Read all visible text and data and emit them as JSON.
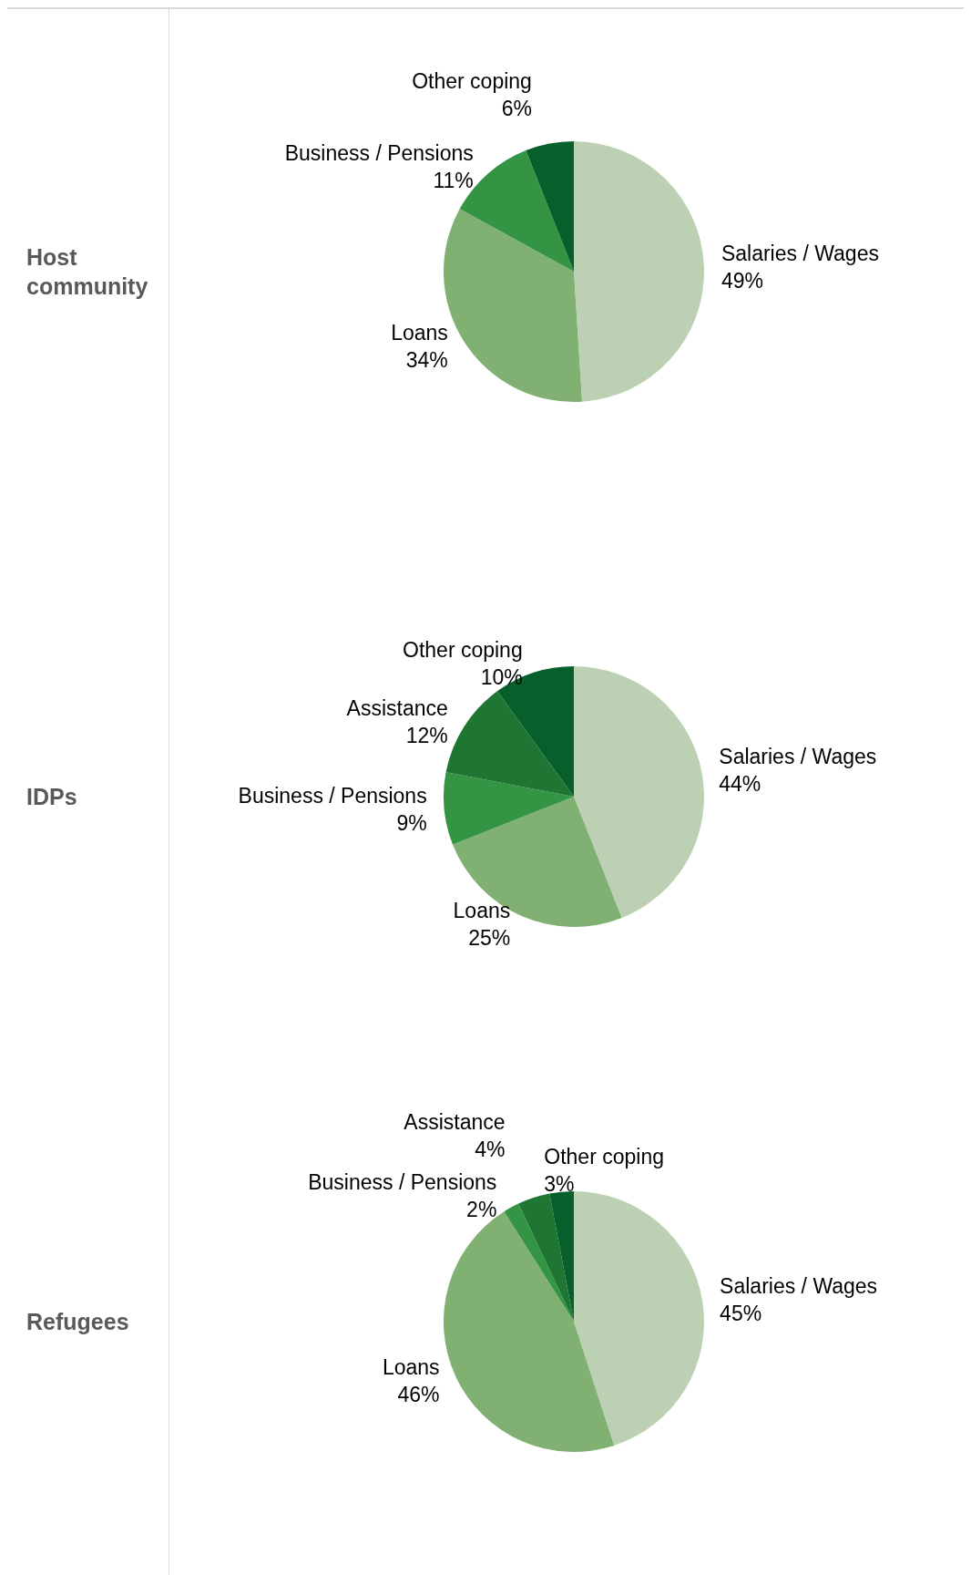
{
  "chart_data": [
    {
      "type": "pie",
      "title": "Host community",
      "categories": [
        "Salaries / Wages",
        "Loans",
        "Business / Pensions",
        "Other coping"
      ],
      "values": [
        49,
        34,
        11,
        6
      ],
      "value_labels": [
        "49%",
        "34%",
        "11%",
        "6%"
      ],
      "colors": [
        "#bcd1b4",
        "#80b072",
        "#339444",
        "#07602c"
      ]
    },
    {
      "type": "pie",
      "title": "IDPs",
      "categories": [
        "Salaries / Wages",
        "Loans",
        "Business / Pensions",
        "Assistance",
        "Other coping"
      ],
      "values": [
        44,
        25,
        9,
        12,
        10
      ],
      "value_labels": [
        "44%",
        "25%",
        "9%",
        "12%",
        "10%"
      ],
      "colors": [
        "#bcd1b4",
        "#80b072",
        "#339444",
        "#1f7633",
        "#07602c"
      ]
    },
    {
      "type": "pie",
      "title": "Refugees",
      "categories": [
        "Salaries / Wages",
        "Loans",
        "Business / Pensions",
        "Assistance",
        "Other coping"
      ],
      "values": [
        45,
        46,
        2,
        4,
        3
      ],
      "value_labels": [
        "45%",
        "46%",
        "2%",
        "4%",
        "3%"
      ],
      "colors": [
        "#bcd1b4",
        "#80b072",
        "#339444",
        "#1f7633",
        "#07602c"
      ]
    }
  ]
}
